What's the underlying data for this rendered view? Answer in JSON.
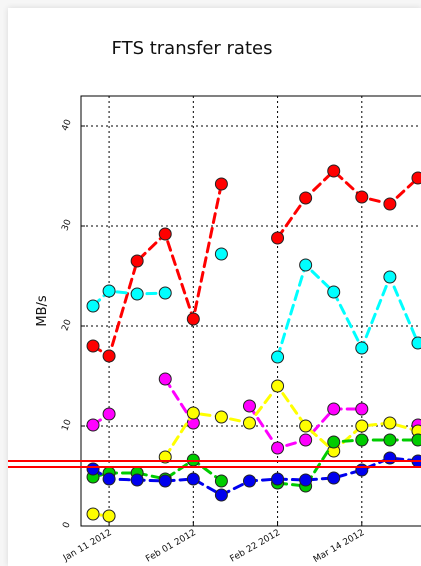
{
  "chart_data": {
    "type": "line",
    "title": "FTS transfer rates",
    "ylabel": "MB/s",
    "xlabel": "",
    "ylim": [
      0,
      43
    ],
    "yticks": [
      "0",
      "10",
      "20",
      "30",
      "40"
    ],
    "xlim": [
      "2012-01-04",
      "2012-03-31"
    ],
    "xticks": [
      {
        "date": "2012-01-11",
        "label": "Jan 11 2012"
      },
      {
        "date": "2012-02-01",
        "label": "Feb 01 2012"
      },
      {
        "date": "2012-02-22",
        "label": "Feb 22 2012"
      },
      {
        "date": "2012-03-14",
        "label": "Mar 14 2012"
      }
    ],
    "grid": true,
    "x": [
      "2012-01-07",
      "2012-01-11",
      "2012-01-18",
      "2012-01-25",
      "2012-02-01",
      "2012-02-08",
      "2012-02-15",
      "2012-02-22",
      "2012-02-29",
      "2012-03-07",
      "2012-03-14",
      "2012-03-21",
      "2012-03-28"
    ],
    "series": [
      {
        "color": "#ff0000",
        "values": [
          18.0,
          17.0,
          26.5,
          29.2,
          20.7,
          34.2,
          null,
          28.8,
          32.8,
          35.5,
          32.9,
          32.2,
          34.8
        ]
      },
      {
        "color": "#00ffff",
        "values": [
          22.0,
          23.5,
          23.2,
          23.3,
          null,
          27.2,
          null,
          16.9,
          26.1,
          23.4,
          17.8,
          24.9,
          18.3
        ]
      },
      {
        "color": "#ff00ff",
        "values": [
          10.1,
          11.2,
          null,
          14.7,
          10.3,
          null,
          12.0,
          7.8,
          8.6,
          11.7,
          11.7,
          null,
          10.1
        ]
      },
      {
        "color": "#ffff00",
        "values": [
          1.2,
          1.0,
          null,
          6.9,
          11.3,
          10.9,
          10.3,
          14.0,
          10.0,
          7.5,
          10.0,
          10.3,
          9.5
        ]
      },
      {
        "color": "#00cc00",
        "values": [
          4.9,
          5.3,
          5.3,
          4.7,
          6.6,
          4.5,
          null,
          4.3,
          4.0,
          8.4,
          8.6,
          8.6,
          8.6
        ]
      },
      {
        "color": "#0000ee",
        "values": [
          5.7,
          4.7,
          4.6,
          4.5,
          4.7,
          3.1,
          4.5,
          4.7,
          4.6,
          4.8,
          5.6,
          6.8,
          6.5
        ]
      }
    ],
    "overlay_color": "#ff0000"
  }
}
